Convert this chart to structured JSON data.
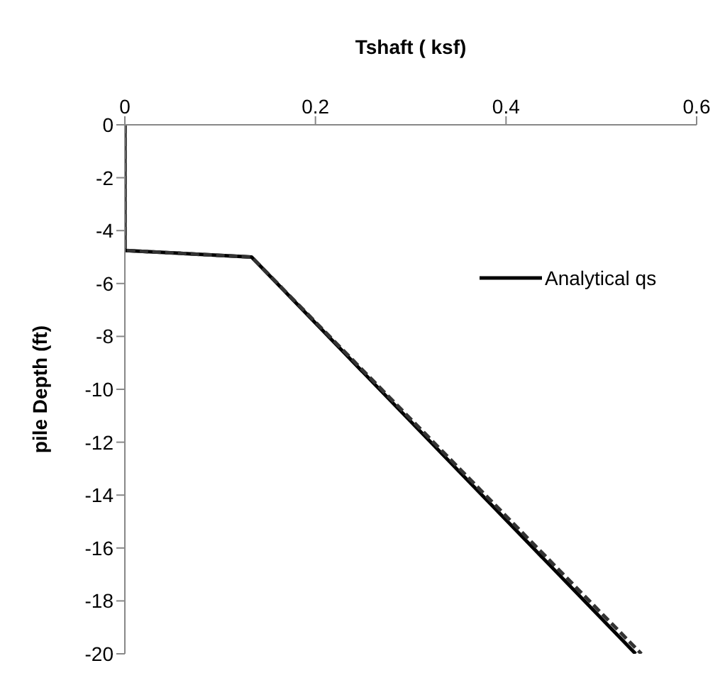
{
  "chart_data": {
    "type": "line",
    "xlabel": "Tshaft ( ksf)",
    "ylabel": "pile Depth (ft)",
    "xlim": [
      0,
      0.6
    ],
    "xticks": [
      0,
      0.2,
      0.4,
      0.6
    ],
    "ylim": [
      -20,
      0
    ],
    "yticks": [
      0,
      -2,
      -4,
      -6,
      -8,
      -10,
      -12,
      -14,
      -16,
      -18,
      -20
    ],
    "grid": false,
    "legend": "right",
    "marker": "none",
    "series": [
      {
        "name": "Analytical qs",
        "color": "#000000",
        "line_style": "solid",
        "x": [
          0,
          0,
          0.133,
          0.536
        ],
        "values": [
          0,
          -4.75,
          -5,
          -20
        ]
      },
      {
        "color": "#333333",
        "line_style": "dashed",
        "x": [
          0,
          0,
          0.133,
          0.542
        ],
        "values": [
          0,
          -4.75,
          -5,
          -20
        ]
      }
    ]
  }
}
